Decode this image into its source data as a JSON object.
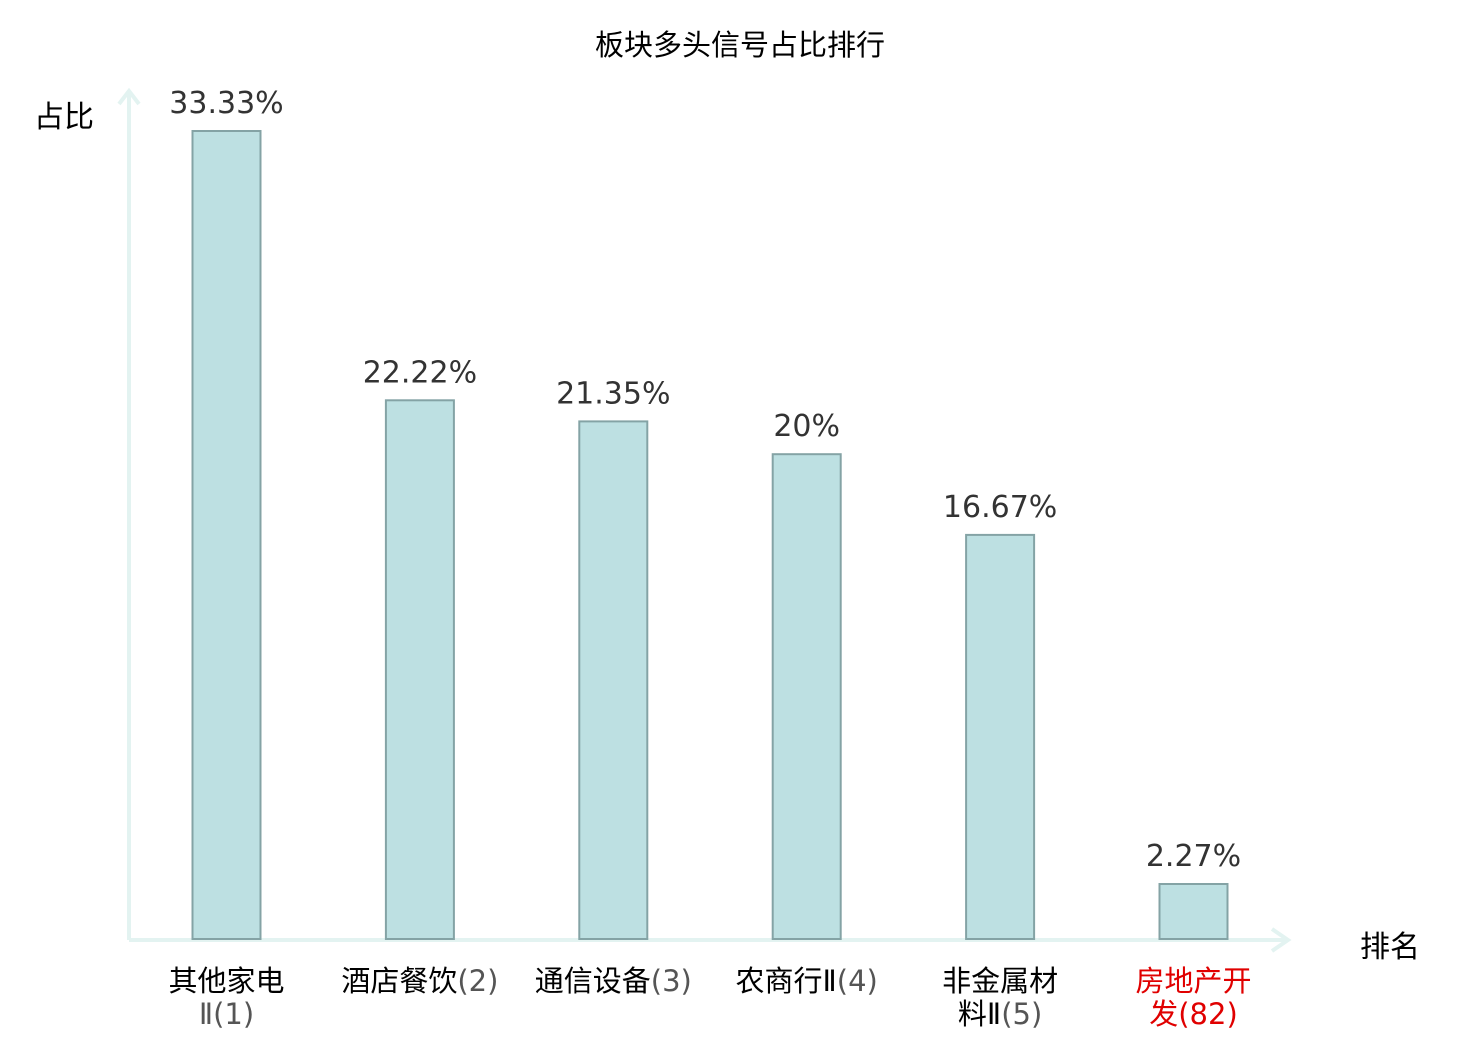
{
  "chart_data": {
    "type": "bar",
    "title": "板块多头信号占比排行",
    "xlabel": "排名",
    "ylabel": "占比",
    "categories": [
      {
        "name": "其他家电",
        "name_cont": "Ⅱ",
        "rank": "(1)",
        "highlight": false
      },
      {
        "name": "酒店餐饮",
        "name_cont": "",
        "rank": "(2)",
        "highlight": false
      },
      {
        "name": "通信设备",
        "name_cont": "",
        "rank": "(3)",
        "highlight": false
      },
      {
        "name": "农商行Ⅱ",
        "name_cont": "",
        "rank": "(4)",
        "highlight": false
      },
      {
        "name": "非金属材",
        "name_cont": "料Ⅱ",
        "rank": "(5)",
        "highlight": false
      },
      {
        "name": "房地产开",
        "name_cont": "发",
        "rank": "(82)",
        "highlight": true
      }
    ],
    "values": [
      33.33,
      22.22,
      21.35,
      20,
      16.67,
      2.27
    ],
    "value_labels": [
      "33.33%",
      "22.22%",
      "21.35%",
      "20%",
      "16.67%",
      "2.27%"
    ],
    "ylim": [
      0,
      34.5
    ],
    "grid": false,
    "legend": "none",
    "colors": {
      "bar_fill": "#bde0e2",
      "bar_stroke": "#84a3a5",
      "axis": "#e3f3f1",
      "text": "#333333",
      "highlight": "#e00000"
    }
  }
}
